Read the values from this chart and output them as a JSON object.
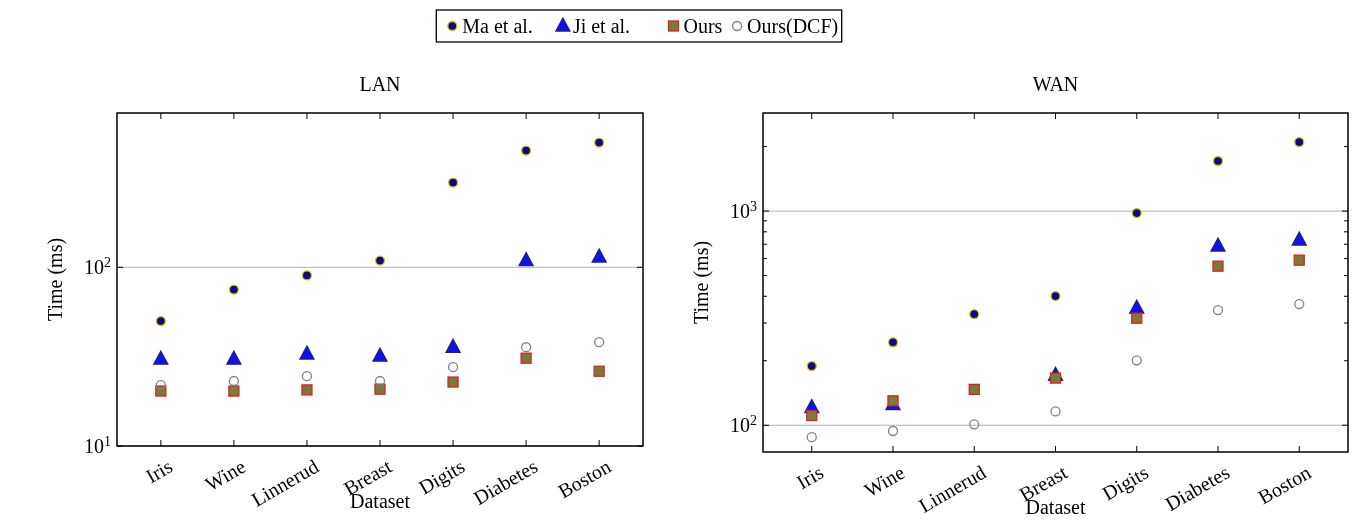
{
  "chart_data": [
    {
      "type": "scatter",
      "title": "LAN",
      "xlabel": "Dataset",
      "ylabel": "Time (ms)",
      "log": "y",
      "legend": "top",
      "grid": "y",
      "categories": [
        "Iris",
        "Wine",
        "Linnerud",
        "Breast",
        "Digits",
        "Diabetes",
        "Boston"
      ],
      "ylim": [
        10,
        730
      ],
      "yticks": [
        {
          "value": 10,
          "label": "10$^{1}$"
        },
        {
          "value": 100,
          "label": "10$^{2}$"
        }
      ],
      "series": [
        {
          "name": "Ma et al.",
          "color": "#0a0a8c",
          "marker": "circle",
          "values": [
            50,
            75,
            90,
            109,
            298,
            450,
            499
          ]
        },
        {
          "name": "Ji et al.",
          "color": "#1010f0",
          "marker": "triangle",
          "values": [
            30.6,
            30.6,
            32.7,
            31.8,
            35.7,
            109,
            114
          ]
        },
        {
          "name": "Ours",
          "color": "#7a7a3a",
          "marker": "square",
          "values": [
            20.3,
            20.3,
            20.6,
            20.8,
            22.8,
            31,
            26.2
          ]
        },
        {
          "name": "Ours(DCF)",
          "color": "#808080",
          "marker": "circle",
          "values": [
            21.9,
            23.1,
            24.6,
            23.1,
            27.6,
            35.7,
            38.1
          ]
        }
      ]
    },
    {
      "type": "scatter",
      "title": "WAN",
      "xlabel": "Dataset",
      "ylabel": "Time (ms)",
      "log": "y",
      "grid": "y",
      "categories": [
        "Iris",
        "Wine",
        "Linnerud",
        "Breast",
        "Digits",
        "Diabetes",
        "Boston"
      ],
      "ylim": [
        75,
        2870
      ],
      "yticks": [
        {
          "value": 100,
          "label": "10$^{2}$"
        },
        {
          "value": 200,
          "label": null
        },
        {
          "value": 300,
          "label": null
        },
        {
          "value": 400,
          "label": null
        },
        {
          "value": 500,
          "label": null
        },
        {
          "value": 600,
          "label": null
        },
        {
          "value": 700,
          "label": null
        },
        {
          "value": 800,
          "label": null
        },
        {
          "value": 900,
          "label": null
        },
        {
          "value": 1000,
          "label": "10$^{3}$"
        },
        {
          "value": 2000,
          "label": null
        }
      ],
      "series": [
        {
          "color": "#0a0a8c",
          "marker": "circle",
          "values": [
            189,
            244,
            330,
            401,
            979,
            1713,
            2100
          ]
        },
        {
          "color": "#1010f0",
          "marker": "triangle",
          "values": [
            121,
            125,
            null,
            171,
            352,
            686,
            732
          ]
        },
        {
          "color": "#7a7a3a",
          "marker": "square",
          "values": [
            111,
            130,
            147,
            166,
            316,
            553,
            590
          ]
        },
        {
          "color": "#808080",
          "marker": "circle",
          "values": [
            88,
            94,
            101,
            116,
            201,
            345,
            368
          ]
        }
      ]
    }
  ]
}
